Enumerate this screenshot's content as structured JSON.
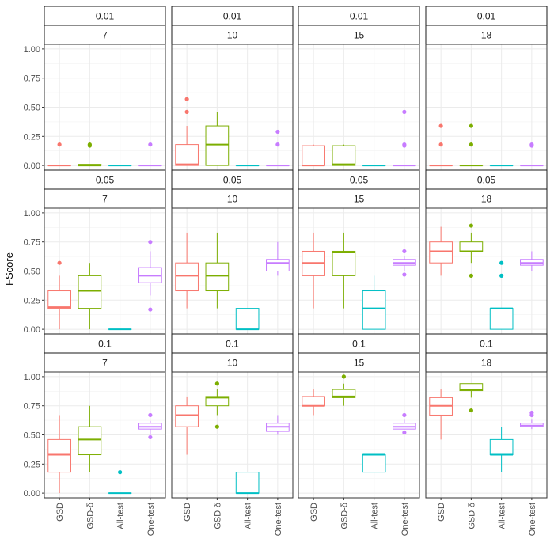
{
  "chart_data": {
    "type": "boxplot",
    "ylabel": "FScore",
    "xlabel": "",
    "ylim": [
      -0.04,
      1.04
    ],
    "yticks": [
      "0.00",
      "0.25",
      "0.50",
      "0.75",
      "1.00"
    ],
    "ytick_values": [
      0,
      0.25,
      0.5,
      0.75,
      1.0
    ],
    "categories": [
      "GSD",
      "GSD-δ",
      "All-test",
      "One-test"
    ],
    "colors": {
      "GSD": "#f8766d",
      "GSD-δ": "#7cae00",
      "All-test": "#00bfc4",
      "One-test": "#c77cff"
    },
    "grid": true,
    "panels": [
      {
        "row_label": "0.01",
        "col_label": "7",
        "boxes": [
          {
            "category": "GSD",
            "q1": 0,
            "median": 0,
            "q3": 0,
            "whisker_low": 0,
            "whisker_high": 0,
            "outliers": [
              0.18
            ]
          },
          {
            "category": "GSD-δ",
            "q1": 0,
            "median": 0,
            "q3": 0.01,
            "whisker_low": 0,
            "whisker_high": 0.01,
            "outliers": [
              0.17,
              0.18
            ]
          },
          {
            "category": "All-test",
            "q1": 0,
            "median": 0,
            "q3": 0,
            "whisker_low": 0,
            "whisker_high": 0,
            "outliers": []
          },
          {
            "category": "One-test",
            "q1": 0,
            "median": 0,
            "q3": 0,
            "whisker_low": 0,
            "whisker_high": 0,
            "outliers": [
              0.18
            ]
          }
        ]
      },
      {
        "row_label": "0.01",
        "col_label": "10",
        "boxes": [
          {
            "category": "GSD",
            "q1": 0,
            "median": 0.01,
            "q3": 0.18,
            "whisker_low": 0,
            "whisker_high": 0.34,
            "outliers": [
              0.46,
              0.57
            ]
          },
          {
            "category": "GSD-δ",
            "q1": 0,
            "median": 0.18,
            "q3": 0.34,
            "whisker_low": 0,
            "whisker_high": 0.46,
            "outliers": []
          },
          {
            "category": "All-test",
            "q1": 0,
            "median": 0,
            "q3": 0,
            "whisker_low": 0,
            "whisker_high": 0,
            "outliers": []
          },
          {
            "category": "One-test",
            "q1": 0,
            "median": 0,
            "q3": 0,
            "whisker_low": 0,
            "whisker_high": 0,
            "outliers": [
              0.18,
              0.29
            ]
          }
        ]
      },
      {
        "row_label": "0.01",
        "col_label": "15",
        "boxes": [
          {
            "category": "GSD",
            "q1": 0,
            "median": 0,
            "q3": 0.17,
            "whisker_low": 0,
            "whisker_high": 0.18,
            "outliers": []
          },
          {
            "category": "GSD-δ",
            "q1": 0,
            "median": 0.01,
            "q3": 0.17,
            "whisker_low": 0,
            "whisker_high": 0.18,
            "outliers": []
          },
          {
            "category": "All-test",
            "q1": 0,
            "median": 0,
            "q3": 0,
            "whisker_low": 0,
            "whisker_high": 0,
            "outliers": []
          },
          {
            "category": "One-test",
            "q1": 0,
            "median": 0,
            "q3": 0,
            "whisker_low": 0,
            "whisker_high": 0,
            "outliers": [
              0.17,
              0.18,
              0.46
            ]
          }
        ]
      },
      {
        "row_label": "0.01",
        "col_label": "18",
        "boxes": [
          {
            "category": "GSD",
            "q1": 0,
            "median": 0,
            "q3": 0,
            "whisker_low": 0,
            "whisker_high": 0,
            "outliers": [
              0.18,
              0.34
            ]
          },
          {
            "category": "GSD-δ",
            "q1": 0,
            "median": 0,
            "q3": 0,
            "whisker_low": 0,
            "whisker_high": 0,
            "outliers": [
              0.18,
              0.34
            ]
          },
          {
            "category": "All-test",
            "q1": 0,
            "median": 0,
            "q3": 0,
            "whisker_low": 0,
            "whisker_high": 0,
            "outliers": []
          },
          {
            "category": "One-test",
            "q1": 0,
            "median": 0,
            "q3": 0,
            "whisker_low": 0,
            "whisker_high": 0,
            "outliers": [
              0.17,
              0.18
            ]
          }
        ]
      },
      {
        "row_label": "0.05",
        "col_label": "7",
        "boxes": [
          {
            "category": "GSD",
            "q1": 0.18,
            "median": 0.19,
            "q3": 0.33,
            "whisker_low": 0,
            "whisker_high": 0.46,
            "outliers": [
              0.57
            ]
          },
          {
            "category": "GSD-δ",
            "q1": 0.18,
            "median": 0.33,
            "q3": 0.46,
            "whisker_low": 0,
            "whisker_high": 0.57,
            "outliers": []
          },
          {
            "category": "All-test",
            "q1": 0,
            "median": 0,
            "q3": 0,
            "whisker_low": 0,
            "whisker_high": 0,
            "outliers": []
          },
          {
            "category": "One-test",
            "q1": 0.4,
            "median": 0.46,
            "q3": 0.53,
            "whisker_low": 0.29,
            "whisker_high": 0.67,
            "outliers": [
              0.17,
              0.75
            ]
          }
        ]
      },
      {
        "row_label": "0.05",
        "col_label": "10",
        "boxes": [
          {
            "category": "GSD",
            "q1": 0.33,
            "median": 0.46,
            "q3": 0.57,
            "whisker_low": 0.18,
            "whisker_high": 0.83,
            "outliers": []
          },
          {
            "category": "GSD-δ",
            "q1": 0.33,
            "median": 0.46,
            "q3": 0.57,
            "whisker_low": 0.18,
            "whisker_high": 0.83,
            "outliers": []
          },
          {
            "category": "All-test",
            "q1": 0,
            "median": 0,
            "q3": 0.18,
            "whisker_low": 0,
            "whisker_high": 0.18,
            "outliers": []
          },
          {
            "category": "One-test",
            "q1": 0.5,
            "median": 0.57,
            "q3": 0.6,
            "whisker_low": 0.46,
            "whisker_high": 0.75,
            "outliers": []
          }
        ]
      },
      {
        "row_label": "0.05",
        "col_label": "15",
        "boxes": [
          {
            "category": "GSD",
            "q1": 0.46,
            "median": 0.57,
            "q3": 0.67,
            "whisker_low": 0.18,
            "whisker_high": 0.83,
            "outliers": []
          },
          {
            "category": "GSD-δ",
            "q1": 0.46,
            "median": 0.66,
            "q3": 0.67,
            "whisker_low": 0.18,
            "whisker_high": 0.83,
            "outliers": []
          },
          {
            "category": "All-test",
            "q1": 0,
            "median": 0.18,
            "q3": 0.33,
            "whisker_low": 0,
            "whisker_high": 0.46,
            "outliers": []
          },
          {
            "category": "One-test",
            "q1": 0.55,
            "median": 0.57,
            "q3": 0.6,
            "whisker_low": 0.5,
            "whisker_high": 0.63,
            "outliers": [
              0.47,
              0.67
            ]
          }
        ]
      },
      {
        "row_label": "0.05",
        "col_label": "18",
        "boxes": [
          {
            "category": "GSD",
            "q1": 0.57,
            "median": 0.67,
            "q3": 0.75,
            "whisker_low": 0.46,
            "whisker_high": 0.88,
            "outliers": []
          },
          {
            "category": "GSD-δ",
            "q1": 0.67,
            "median": 0.67,
            "q3": 0.75,
            "whisker_low": 0.57,
            "whisker_high": 0.83,
            "outliers": [
              0.46,
              0.89
            ]
          },
          {
            "category": "All-test",
            "q1": 0,
            "median": 0.18,
            "q3": 0.18,
            "whisker_low": 0,
            "whisker_high": 0.18,
            "outliers": [
              0.46,
              0.57
            ]
          },
          {
            "category": "One-test",
            "q1": 0.55,
            "median": 0.57,
            "q3": 0.6,
            "whisker_low": 0.5,
            "whisker_high": 0.67,
            "outliers": []
          }
        ]
      },
      {
        "row_label": "0.1",
        "col_label": "7",
        "boxes": [
          {
            "category": "GSD",
            "q1": 0.18,
            "median": 0.33,
            "q3": 0.46,
            "whisker_low": 0,
            "whisker_high": 0.67,
            "outliers": []
          },
          {
            "category": "GSD-δ",
            "q1": 0.33,
            "median": 0.46,
            "q3": 0.57,
            "whisker_low": 0.18,
            "whisker_high": 0.75,
            "outliers": []
          },
          {
            "category": "All-test",
            "q1": 0,
            "median": 0,
            "q3": 0,
            "whisker_low": 0,
            "whisker_high": 0,
            "outliers": [
              0.18
            ]
          },
          {
            "category": "One-test",
            "q1": 0.55,
            "median": 0.57,
            "q3": 0.6,
            "whisker_low": 0.5,
            "whisker_high": 0.62,
            "outliers": [
              0.48,
              0.67
            ]
          }
        ]
      },
      {
        "row_label": "0.1",
        "col_label": "10",
        "boxes": [
          {
            "category": "GSD",
            "q1": 0.57,
            "median": 0.67,
            "q3": 0.75,
            "whisker_low": 0.33,
            "whisker_high": 0.83,
            "outliers": []
          },
          {
            "category": "GSD-δ",
            "q1": 0.75,
            "median": 0.82,
            "q3": 0.83,
            "whisker_low": 0.67,
            "whisker_high": 0.89,
            "outliers": [
              0.57,
              0.94
            ]
          },
          {
            "category": "All-test",
            "q1": 0,
            "median": 0,
            "q3": 0.18,
            "whisker_low": 0,
            "whisker_high": 0.18,
            "outliers": []
          },
          {
            "category": "One-test",
            "q1": 0.53,
            "median": 0.57,
            "q3": 0.6,
            "whisker_low": 0.5,
            "whisker_high": 0.67,
            "outliers": []
          }
        ]
      },
      {
        "row_label": "0.1",
        "col_label": "15",
        "boxes": [
          {
            "category": "GSD",
            "q1": 0.75,
            "median": 0.75,
            "q3": 0.83,
            "whisker_low": 0.67,
            "whisker_high": 0.89,
            "outliers": []
          },
          {
            "category": "GSD-δ",
            "q1": 0.82,
            "median": 0.83,
            "q3": 0.89,
            "whisker_low": 0.75,
            "whisker_high": 0.94,
            "outliers": [
              1.0
            ]
          },
          {
            "category": "All-test",
            "q1": 0.18,
            "median": 0.33,
            "q3": 0.33,
            "whisker_low": 0.18,
            "whisker_high": 0.33,
            "outliers": []
          },
          {
            "category": "One-test",
            "q1": 0.55,
            "median": 0.57,
            "q3": 0.6,
            "whisker_low": 0.55,
            "whisker_high": 0.63,
            "outliers": [
              0.52,
              0.67
            ]
          }
        ]
      },
      {
        "row_label": "0.1",
        "col_label": "18",
        "boxes": [
          {
            "category": "GSD",
            "q1": 0.67,
            "median": 0.75,
            "q3": 0.82,
            "whisker_low": 0.46,
            "whisker_high": 0.89,
            "outliers": []
          },
          {
            "category": "GSD-δ",
            "q1": 0.88,
            "median": 0.89,
            "q3": 0.94,
            "whisker_low": 0.82,
            "whisker_high": 0.94,
            "outliers": [
              0.71
            ]
          },
          {
            "category": "All-test",
            "q1": 0.33,
            "median": 0.33,
            "q3": 0.46,
            "whisker_low": 0.18,
            "whisker_high": 0.57,
            "outliers": []
          },
          {
            "category": "One-test",
            "q1": 0.57,
            "median": 0.58,
            "q3": 0.6,
            "whisker_low": 0.55,
            "whisker_high": 0.63,
            "outliers": [
              0.67,
              0.69
            ]
          }
        ]
      }
    ]
  }
}
